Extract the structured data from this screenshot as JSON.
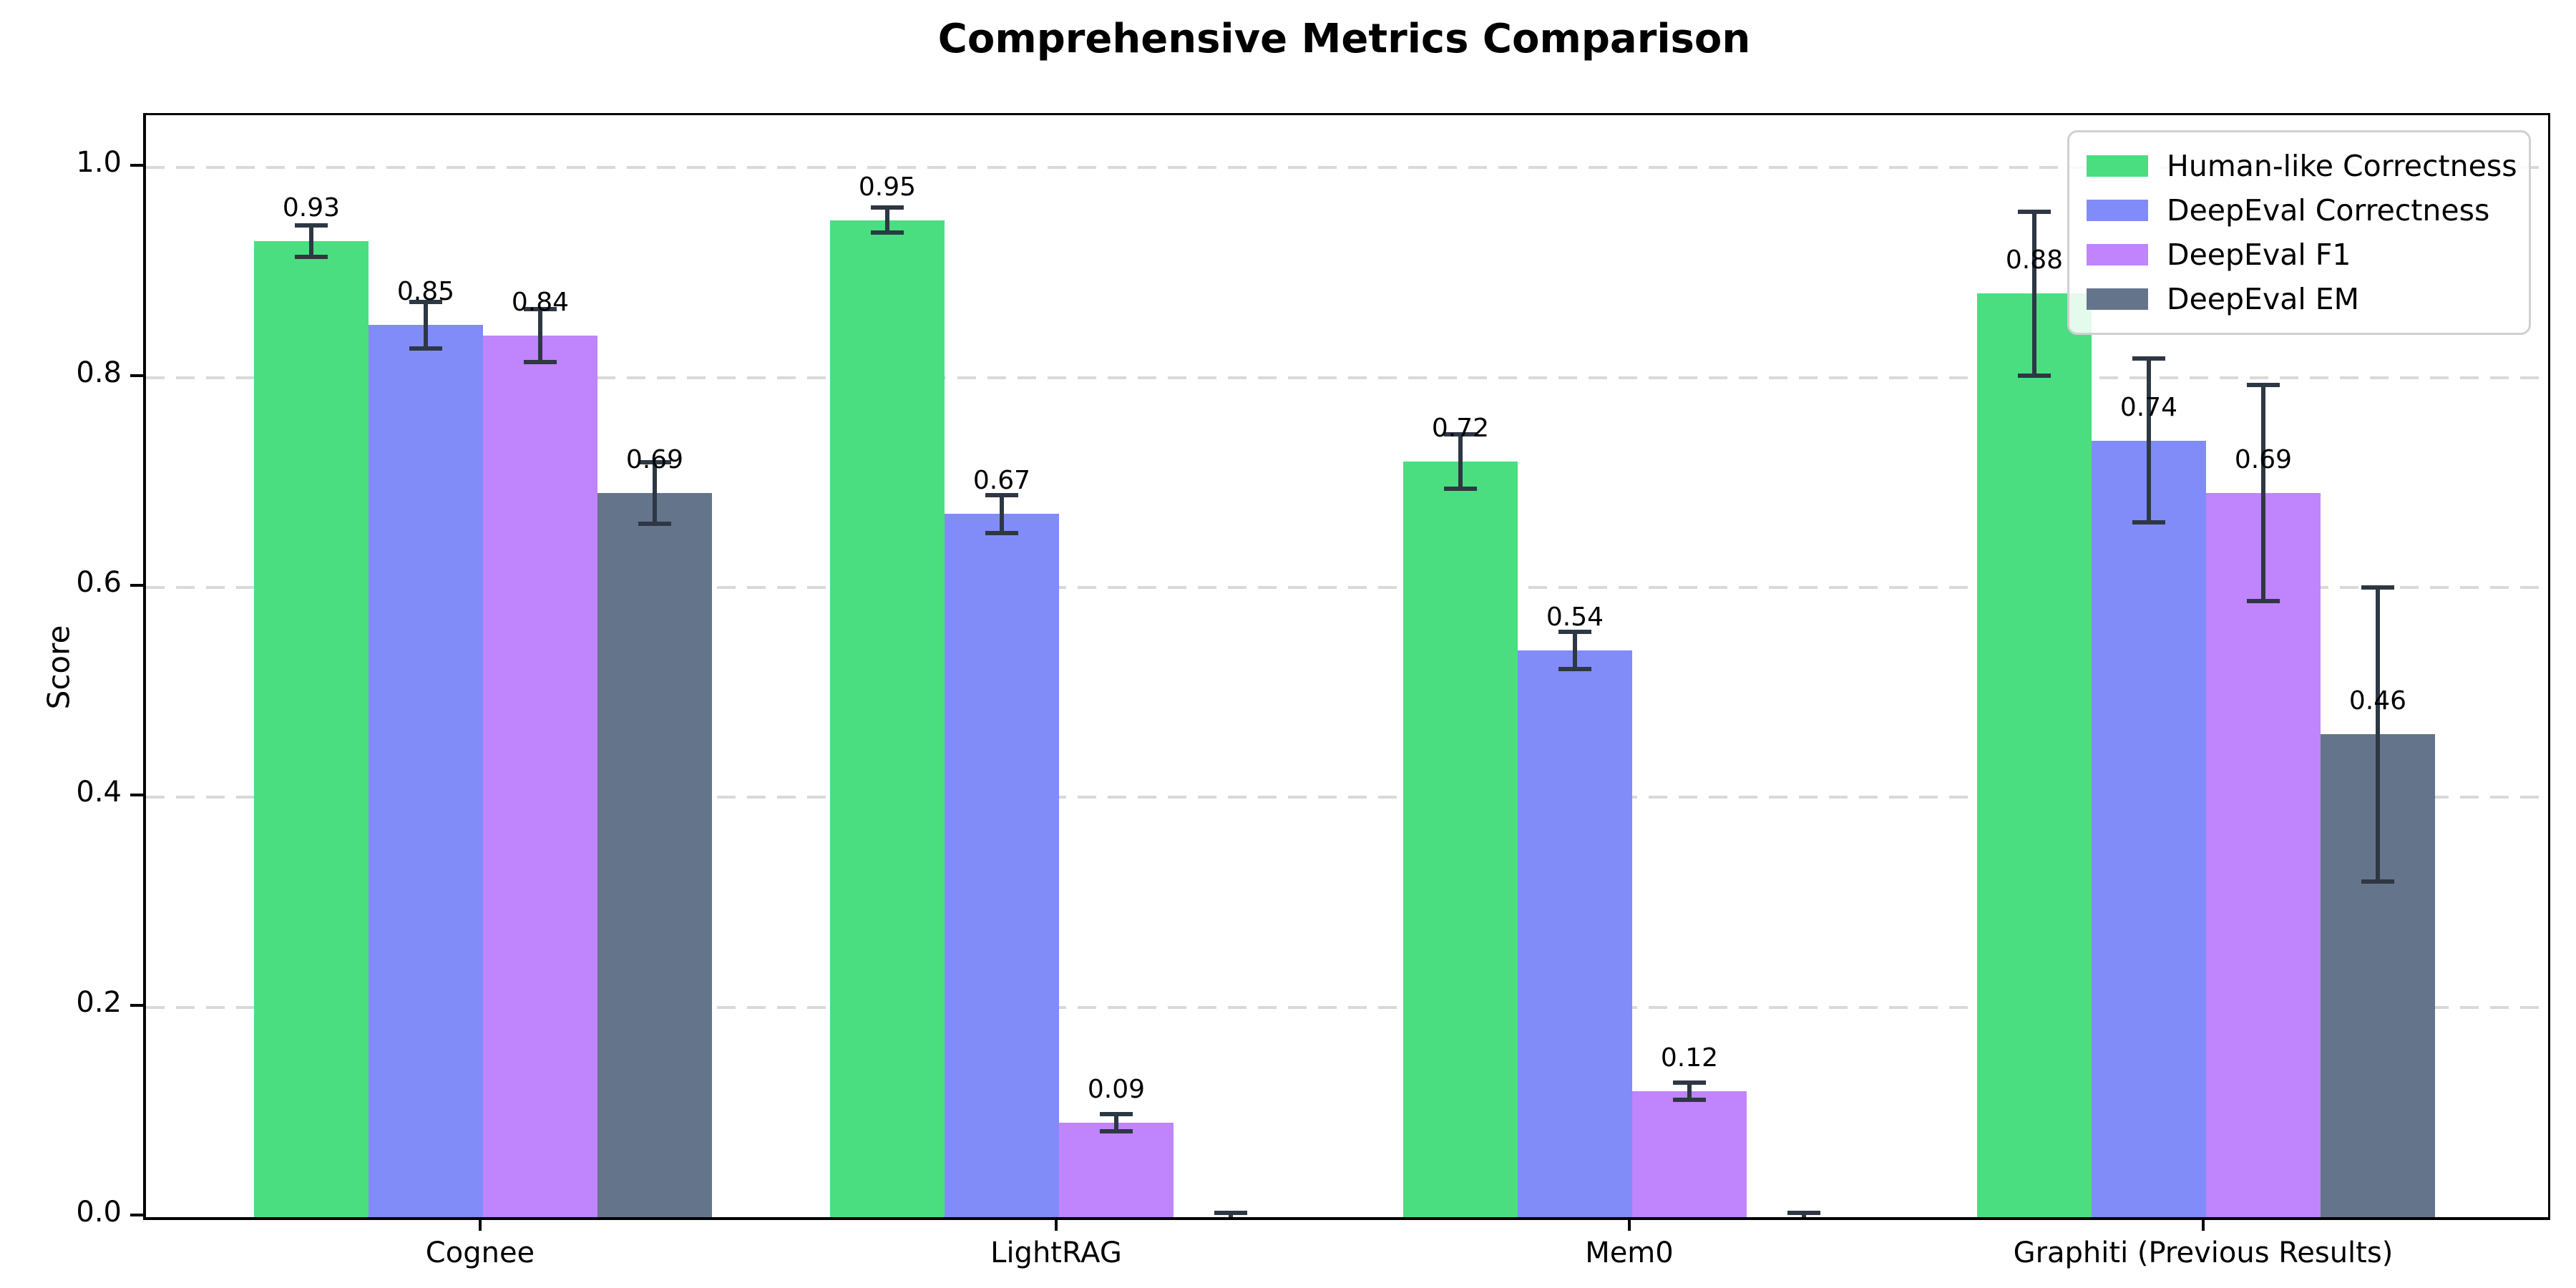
{
  "page": {
    "background": "#ffffff"
  },
  "chart_data": {
    "type": "bar",
    "title": "Comprehensive Metrics Comparison",
    "ylabel": "Score",
    "xlabel": "",
    "categories": [
      "Cognee",
      "LightRAG",
      "Mem0",
      "Graphiti (Previous Results)"
    ],
    "series": [
      {
        "name": "Human-like Correctness",
        "color": "#4ade80",
        "values": [
          0.93,
          0.95,
          0.72,
          0.88
        ],
        "errors": [
          0.015,
          0.012,
          0.026,
          0.078
        ],
        "bar_labels": [
          "0.93",
          "0.95",
          "0.72",
          "0.88"
        ]
      },
      {
        "name": "DeepEval Correctness",
        "color": "#818cf8",
        "values": [
          0.85,
          0.67,
          0.54,
          0.74
        ],
        "errors": [
          0.022,
          0.018,
          0.018,
          0.078
        ],
        "bar_labels": [
          "0.85",
          "0.67",
          "0.54",
          "0.74"
        ]
      },
      {
        "name": "DeepEval F1",
        "color": "#c084fc",
        "values": [
          0.84,
          0.09,
          0.12,
          0.69
        ],
        "errors": [
          0.025,
          0.008,
          0.008,
          0.103
        ],
        "bar_labels": [
          "0.84",
          "0.09",
          "0.12",
          "0.69"
        ]
      },
      {
        "name": "DeepEval EM",
        "color": "#64748b",
        "values": [
          0.69,
          0.0,
          0.0,
          0.46
        ],
        "errors": [
          0.029,
          0.004,
          0.004,
          0.14
        ],
        "bar_labels": [
          "0.69",
          "",
          "",
          "0.46"
        ]
      }
    ],
    "yticks": [
      "0.0",
      "0.2",
      "0.4",
      "0.6",
      "0.8",
      "1.0"
    ],
    "ylim": [
      0,
      1.05
    ],
    "grid": {
      "axis": "y",
      "style": "dashed",
      "color": "#d9d9d9"
    },
    "legend": {
      "position": "upper right"
    },
    "error_bar_color": "#2e3744"
  }
}
